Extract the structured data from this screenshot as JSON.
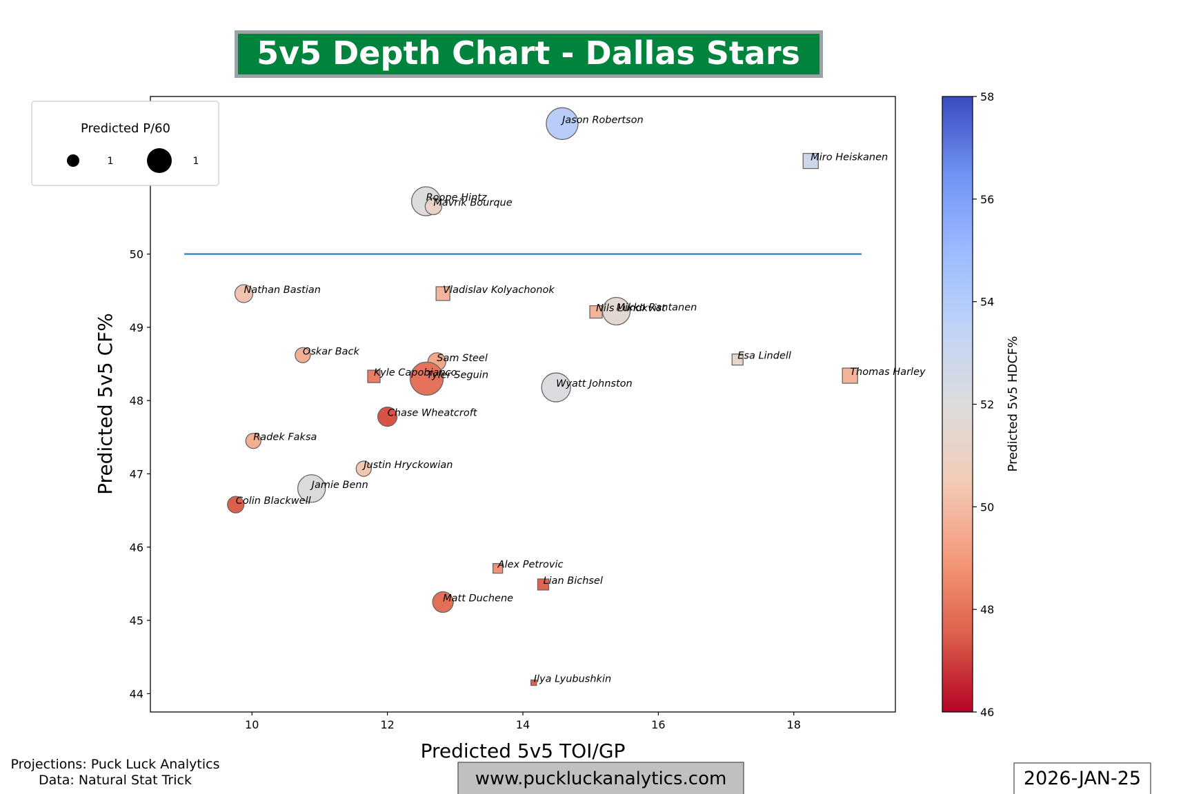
{
  "title": "5v5 Depth Chart - Dallas Stars",
  "footer": {
    "credits_line1": "Projections: Puck Luck Analytics",
    "credits_line2": "Data: Natural Stat Trick",
    "website": "www.puckluckanalytics.com",
    "date": "2026-JAN-25"
  },
  "legend": {
    "title": "Predicted P/60",
    "entries": [
      {
        "label": "1",
        "size": "small"
      },
      {
        "label": "1",
        "size": "large"
      }
    ],
    "placement": "upper-left"
  },
  "colors": {
    "title_bg": "#00843D",
    "title_border": "#9aa3a8",
    "reference_line": "#1f77b4",
    "website_bg": "#c0c0c0",
    "colormap": "coolwarm_r"
  },
  "chart_data": {
    "type": "scatter",
    "xlabel": "Predicted 5v5 TOI/GP",
    "ylabel": "Predicted 5v5 CF%",
    "xlim": [
      8.5,
      19.5
    ],
    "ylim": [
      43.75,
      52.15
    ],
    "xticks": [
      "10",
      "12",
      "14",
      "16",
      "18"
    ],
    "yticks": [
      "44",
      "45",
      "46",
      "47",
      "48",
      "49",
      "50",
      "51",
      "52"
    ],
    "reference_line": {
      "y": 50,
      "x": [
        9,
        19
      ]
    },
    "colorbar": {
      "label": "Predicted 5v5 HDCF%",
      "range": [
        46,
        58
      ],
      "ticks": [
        "46",
        "48",
        "50",
        "52",
        "54",
        "56",
        "58"
      ]
    },
    "points": [
      {
        "name": "Jason Robertson",
        "x": 14.58,
        "y": 51.78,
        "hdcf": 53.8,
        "marker": "circle",
        "size": 23
      },
      {
        "name": "Miro Heiskanen",
        "x": 18.25,
        "y": 51.27,
        "hdcf": 52.8,
        "marker": "square",
        "size": 11
      },
      {
        "name": "Roope Hintz",
        "x": 12.57,
        "y": 50.72,
        "hdcf": 52.0,
        "marker": "circle",
        "size": 21
      },
      {
        "name": "Mavrik Bourque",
        "x": 12.68,
        "y": 50.65,
        "hdcf": 51.1,
        "marker": "circle",
        "size": 12
      },
      {
        "name": "Nathan Bastian",
        "x": 9.88,
        "y": 49.46,
        "hdcf": 50.3,
        "marker": "circle",
        "size": 13
      },
      {
        "name": "Vladislav Kolyachonok",
        "x": 12.82,
        "y": 49.46,
        "hdcf": 49.8,
        "marker": "square",
        "size": 10
      },
      {
        "name": "Nils Lundkvist",
        "x": 15.08,
        "y": 49.21,
        "hdcf": 49.8,
        "marker": "square",
        "size": 9
      },
      {
        "name": "Mikko Rantanen",
        "x": 15.38,
        "y": 49.22,
        "hdcf": 51.6,
        "marker": "circle",
        "size": 20
      },
      {
        "name": "Oskar Back",
        "x": 10.75,
        "y": 48.62,
        "hdcf": 49.6,
        "marker": "circle",
        "size": 11
      },
      {
        "name": "Sam Steel",
        "x": 12.73,
        "y": 48.53,
        "hdcf": 49.4,
        "marker": "circle",
        "size": 13
      },
      {
        "name": "Esa Lindell",
        "x": 17.17,
        "y": 48.56,
        "hdcf": 51.4,
        "marker": "square",
        "size": 8
      },
      {
        "name": "Thomas Harley",
        "x": 18.83,
        "y": 48.34,
        "hdcf": 49.8,
        "marker": "square",
        "size": 11
      },
      {
        "name": "Kyle Capobianco",
        "x": 11.8,
        "y": 48.33,
        "hdcf": 48.3,
        "marker": "square",
        "size": 9
      },
      {
        "name": "Tyler Seguin",
        "x": 12.58,
        "y": 48.3,
        "hdcf": 48.0,
        "marker": "circle",
        "size": 24
      },
      {
        "name": "Wyatt Johnston",
        "x": 14.49,
        "y": 48.18,
        "hdcf": 52.2,
        "marker": "circle",
        "size": 21
      },
      {
        "name": "Chase Wheatcroft",
        "x": 12.0,
        "y": 47.78,
        "hdcf": 47.3,
        "marker": "circle",
        "size": 14
      },
      {
        "name": "Radek Faksa",
        "x": 10.02,
        "y": 47.45,
        "hdcf": 49.6,
        "marker": "circle",
        "size": 11
      },
      {
        "name": "Justin Hryckowian",
        "x": 11.65,
        "y": 47.07,
        "hdcf": 50.4,
        "marker": "circle",
        "size": 11
      },
      {
        "name": "Jamie Benn",
        "x": 10.88,
        "y": 46.8,
        "hdcf": 52.1,
        "marker": "circle",
        "size": 20
      },
      {
        "name": "Colin Blackwell",
        "x": 9.76,
        "y": 46.58,
        "hdcf": 47.5,
        "marker": "circle",
        "size": 12
      },
      {
        "name": "Alex Petrovic",
        "x": 13.63,
        "y": 45.71,
        "hdcf": 48.8,
        "marker": "square",
        "size": 7
      },
      {
        "name": "Lian Bichsel",
        "x": 14.3,
        "y": 45.49,
        "hdcf": 47.6,
        "marker": "square",
        "size": 8
      },
      {
        "name": "Matt Duchene",
        "x": 12.82,
        "y": 45.25,
        "hdcf": 47.9,
        "marker": "circle",
        "size": 15
      },
      {
        "name": "Ilya Lyubushkin",
        "x": 14.16,
        "y": 44.15,
        "hdcf": 47.6,
        "marker": "square",
        "size": 4
      }
    ]
  }
}
